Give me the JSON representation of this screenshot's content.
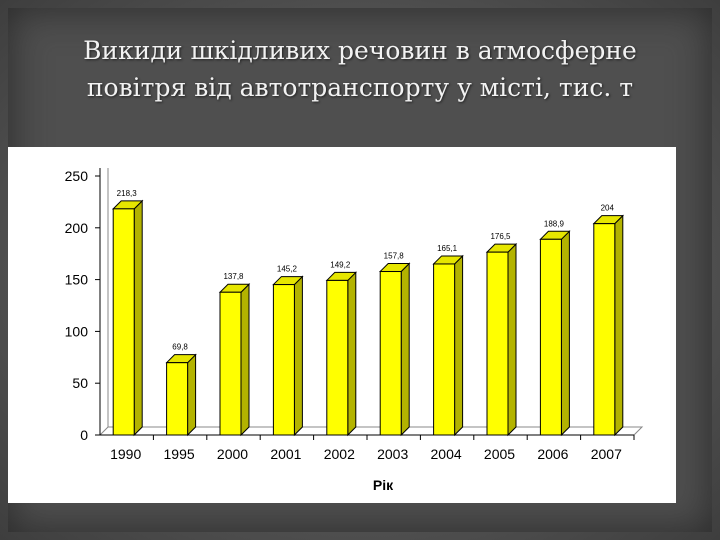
{
  "slide": {
    "title_line1": "Викиди шкідливих речовин в атмосферне",
    "title_line2": "повітря від автотранспорту у місті, тис. т"
  },
  "chart_data": {
    "type": "bar",
    "categories": [
      "1990",
      "1995",
      "2000",
      "2001",
      "2002",
      "2003",
      "2004",
      "2005",
      "2006",
      "2007"
    ],
    "values": [
      218.3,
      69.8,
      137.8,
      145.2,
      149.2,
      157.8,
      165.1,
      176.5,
      188.9,
      204
    ],
    "data_labels": [
      "218,3",
      "69,8",
      "137,8",
      "145,2",
      "149,2",
      "157,8",
      "165,1",
      "176,5",
      "188,9",
      "204"
    ],
    "xlabel": "Рік",
    "ylabel": "",
    "ylim": [
      0,
      250
    ],
    "yticks": [
      0,
      50,
      100,
      150,
      200,
      250
    ],
    "grid": false,
    "legend": "none",
    "style": "3d",
    "colors": {
      "bar_face": "#ffff00",
      "bar_side": "#b3b300",
      "bar_top": "#e6e600",
      "bar_outline": "#000000",
      "panel": "#ffffff"
    }
  }
}
